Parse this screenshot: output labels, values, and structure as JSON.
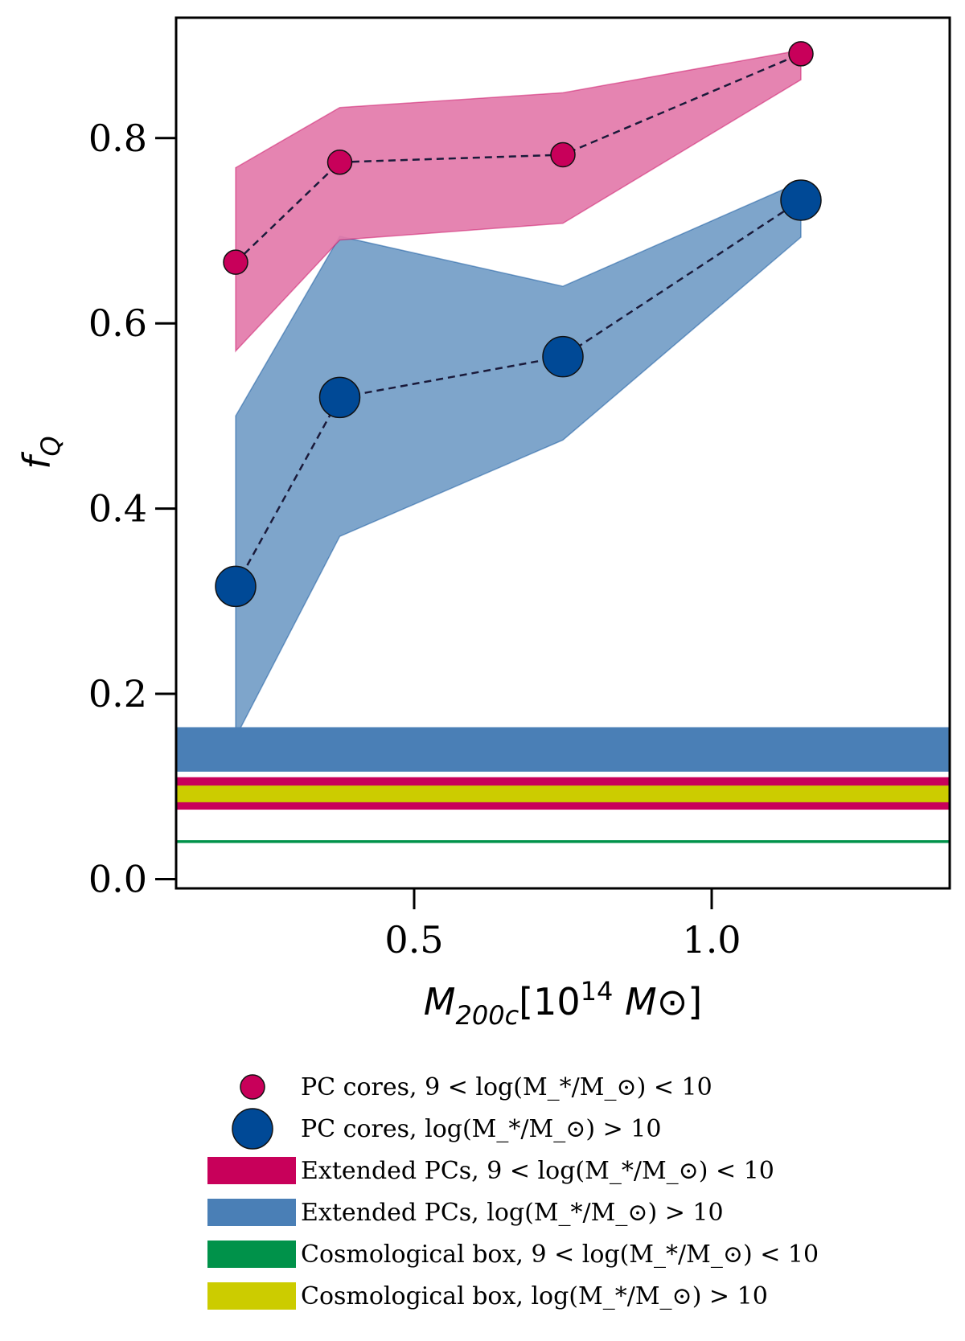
{
  "chart_data": {
    "type": "line",
    "xlabel": "M_200c[10^14 M_⊙]",
    "ylabel": "f_Q",
    "xlim": [
      0.1,
      1.4
    ],
    "ylim": [
      -0.01,
      0.93
    ],
    "xticks": [
      0.5,
      1.0
    ],
    "xtick_labels": [
      "0.5",
      "1.0"
    ],
    "yticks": [
      0.0,
      0.2,
      0.4,
      0.6,
      0.8
    ],
    "ytick_labels": [
      "0.0",
      "0.2",
      "0.4",
      "0.6",
      "0.8"
    ],
    "grid": false,
    "legend_position": "below",
    "series": [
      {
        "name": "PC cores, 9 < log(M_*/M_⊙) < 10",
        "color": "#c8005a",
        "band_color": "#e37aaa",
        "marker": "circle-small",
        "x": [
          0.2,
          0.375,
          0.75,
          1.15
        ],
        "y": [
          0.666,
          0.774,
          0.782,
          0.891
        ],
        "y_lower": [
          0.57,
          0.69,
          0.708,
          0.863
        ],
        "y_upper": [
          0.768,
          0.833,
          0.849,
          0.895
        ]
      },
      {
        "name": "PC cores, log(M_*/M_⊙) > 10",
        "color": "#004996",
        "band_color": "#7ea5cb",
        "marker": "circle-large",
        "x": [
          0.2,
          0.375,
          0.75,
          1.15
        ],
        "y": [
          0.316,
          0.52,
          0.564,
          0.733
        ],
        "y_lower": [
          0.153,
          0.37,
          0.474,
          0.693
        ],
        "y_upper": [
          0.5,
          0.694,
          0.64,
          0.753
        ]
      }
    ],
    "horizontal_bands": [
      {
        "name": "Extended PCs, log(M_*/M_⊙) > 10",
        "color": "#4a7fb6",
        "y_lower": 0.116,
        "y_upper": 0.164
      },
      {
        "name": "Extended PCs, 9 < log(M_*/M_⊙) < 10",
        "color": "#c8005a",
        "y_lower": 0.075,
        "y_upper": 0.11
      },
      {
        "name": "Cosmological box, log(M_*/M_⊙) > 10",
        "color": "#cccc00",
        "y_lower": 0.083,
        "y_upper": 0.101
      },
      {
        "name": "Cosmological box, 9 < log(M_*/M_⊙) < 10",
        "color": "#00924a",
        "y_lower": 0.039,
        "y_upper": 0.042
      }
    ],
    "legend": [
      {
        "kind": "marker-small",
        "color": "#c8005a",
        "text": "PC cores, 9 < log(M_*/M_⊙) < 10"
      },
      {
        "kind": "marker-large",
        "color": "#004996",
        "text": "PC cores, log(M_*/M_⊙) > 10"
      },
      {
        "kind": "patch",
        "color": "#c8005a",
        "text": "Extended PCs, 9 < log(M_*/M_⊙) < 10"
      },
      {
        "kind": "patch",
        "color": "#4a7fb6",
        "text": "Extended PCs, log(M_*/M_⊙) > 10"
      },
      {
        "kind": "patch",
        "color": "#00924a",
        "text": "Cosmological box, 9 < log(M_*/M_⊙) < 10"
      },
      {
        "kind": "patch",
        "color": "#cccc00",
        "text": "Cosmological box, log(M_*/M_⊙) > 10"
      }
    ]
  }
}
